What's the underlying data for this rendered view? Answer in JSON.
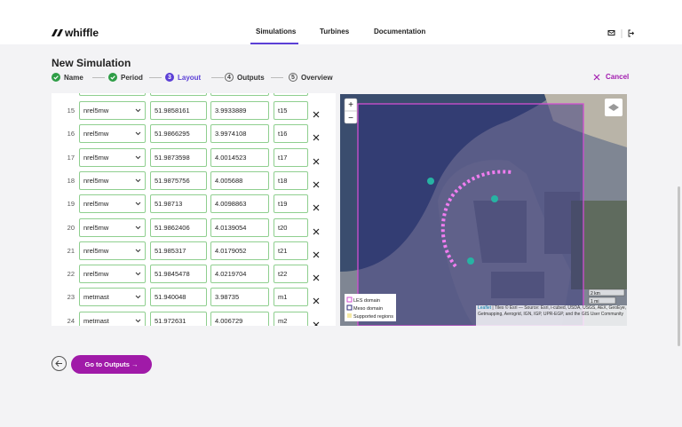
{
  "header": {
    "logo": "whiffle",
    "nav": [
      "Simulations",
      "Turbines",
      "Documentation"
    ],
    "active_nav": "Simulations"
  },
  "page": {
    "title": "New Simulation",
    "cancel": "Cancel",
    "steps": [
      {
        "label": "Name",
        "state": "done"
      },
      {
        "label": "Period",
        "state": "done"
      },
      {
        "number": "3",
        "label": "Layout",
        "state": "active"
      },
      {
        "number": "4",
        "label": "Outputs",
        "state": "todo"
      },
      {
        "number": "5",
        "label": "Overview",
        "state": "todo"
      }
    ]
  },
  "table": {
    "rows": [
      [
        "15",
        "nrel5mw",
        "51.9858161",
        "3.9933889",
        "t15"
      ],
      [
        "16",
        "nrel5mw",
        "51.9866295",
        "3.9974108",
        "t16"
      ],
      [
        "17",
        "nrel5mw",
        "51.9873598",
        "4.0014523",
        "t17"
      ],
      [
        "18",
        "nrel5mw",
        "51.9875756",
        "4.005688",
        "t18"
      ],
      [
        "19",
        "nrel5mw",
        "51.98713",
        "4.0098863",
        "t19"
      ],
      [
        "20",
        "nrel5mw",
        "51.9862406",
        "4.0139054",
        "t20"
      ],
      [
        "21",
        "nrel5mw",
        "51.985317",
        "4.0179052",
        "t21"
      ],
      [
        "22",
        "nrel5mw",
        "51.9845478",
        "4.0219704",
        "t22"
      ],
      [
        "23",
        "metmast",
        "51.940048",
        "3.98735",
        "m1"
      ],
      [
        "24",
        "metmast",
        "51.972631",
        "4.006729",
        "m2"
      ]
    ]
  },
  "map": {
    "zoom_in": "+",
    "zoom_out": "−",
    "legend": [
      "LES domain",
      "Meso domain",
      "Supported regions"
    ],
    "scale": [
      "2 km",
      "1 mi"
    ],
    "attribution_link": "Leaflet",
    "attribution": "| Tiles © Esri — Source: Esri, i-cubed, USDA, USGS, AEX, GeoEye, Getmapping, Aerogrid, IGN, IGP, UPR-EGP, and the GIS User Community"
  },
  "footer": {
    "next_button": "Go to Outputs →"
  }
}
